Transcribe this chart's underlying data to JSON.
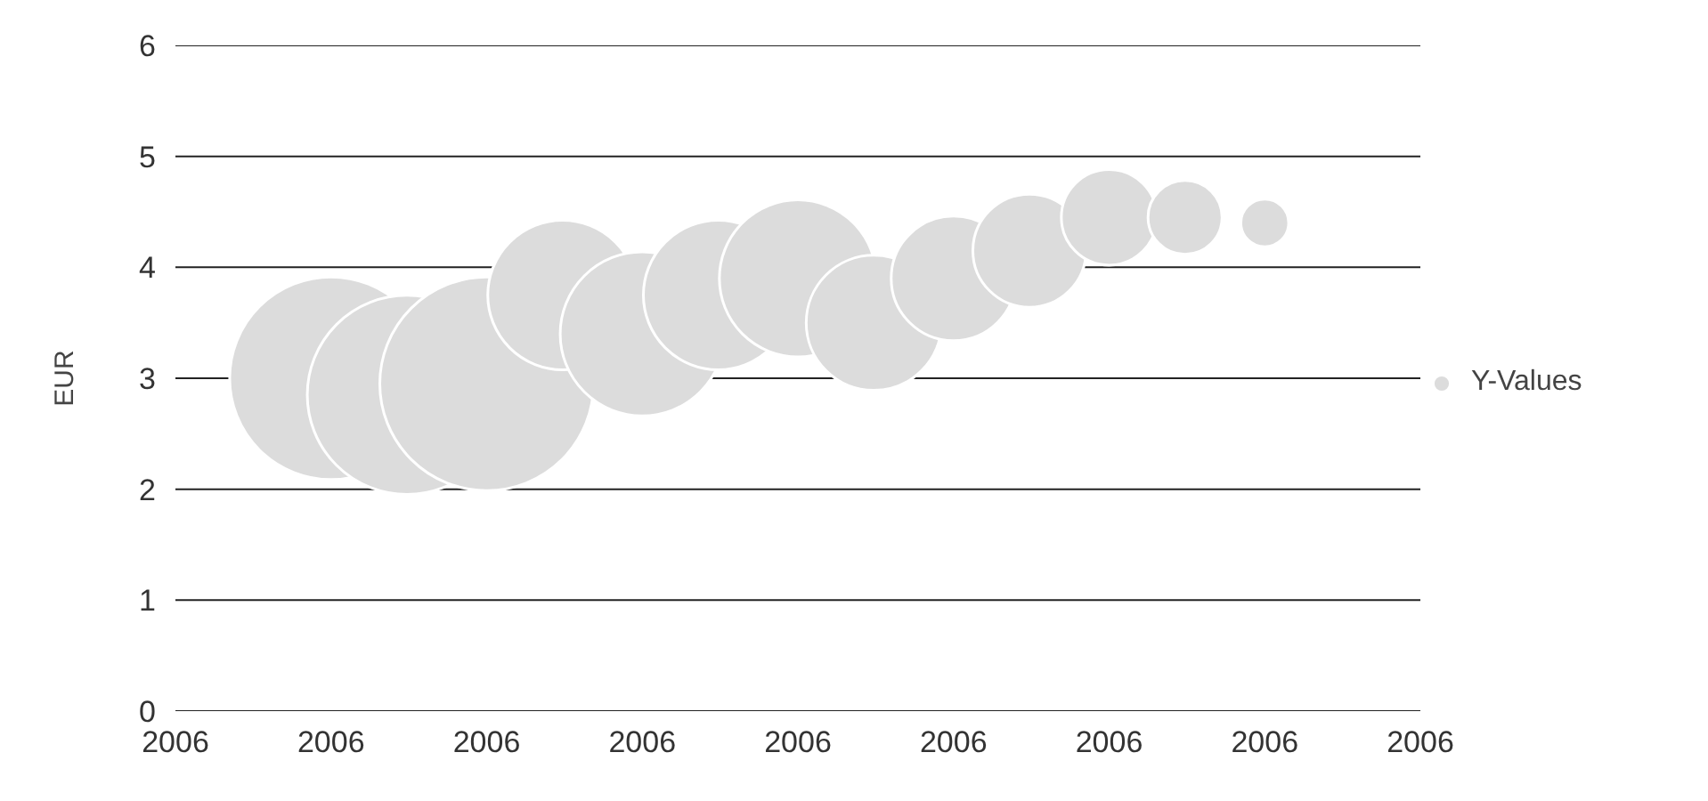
{
  "chart_data": {
    "type": "bubble",
    "ylabel": "EUR",
    "x": [
      "2006-02-11",
      "2006-03-03",
      "2006-03-24",
      "2006-04-13",
      "2006-05-04",
      "2006-05-24",
      "2006-06-14",
      "2006-07-04",
      "2006-07-25",
      "2006-08-14",
      "2006-09-04",
      "2006-09-24",
      "2006-10-15"
    ],
    "series": [
      {
        "name": "Y-Values",
        "color": "#dcdcdc",
        "values": [
          3.0,
          2.85,
          2.95,
          3.75,
          3.4,
          3.75,
          3.9,
          3.5,
          3.9,
          4.15,
          4.45,
          4.45,
          4.4
        ],
        "sizes": [
          0.9,
          0.87,
          1,
          0.49,
          0.59,
          0.49,
          0.54,
          0.4,
          0.34,
          0.28,
          0.2,
          0.12,
          0.05
        ]
      }
    ],
    "xlim": [
      "2006-01-01",
      "2006-11-25"
    ],
    "xticks": [
      {
        "value": "2006-01-01",
        "label": "2006"
      },
      {
        "value": "2006-02-11",
        "label": "2006"
      },
      {
        "value": "2006-03-24",
        "label": "2006"
      },
      {
        "value": "2006-05-04",
        "label": "2006"
      },
      {
        "value": "2006-06-14",
        "label": "2006"
      },
      {
        "value": "2006-07-25",
        "label": "2006"
      },
      {
        "value": "2006-09-04",
        "label": "2006"
      },
      {
        "value": "2006-10-15",
        "label": "2006"
      },
      {
        "value": "2006-11-25",
        "label": "2006"
      }
    ],
    "ylim": [
      0,
      6
    ],
    "yticks": [
      0,
      1,
      2,
      3,
      4,
      5,
      6
    ],
    "grid": "y",
    "legend": "right",
    "marker": "circle"
  }
}
